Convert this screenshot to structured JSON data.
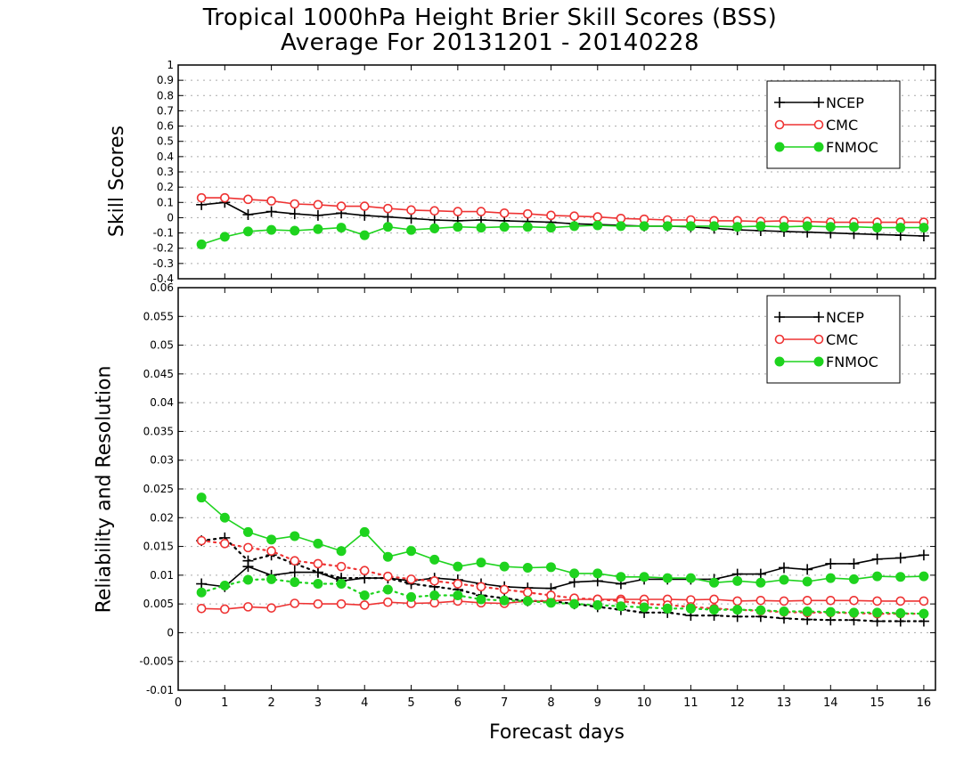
{
  "title_line1": "Tropical 1000hPa Height Brier Skill Scores (BSS)",
  "title_line2": "Average For 20131201 - 20140228",
  "xlabel": "Forecast days",
  "colors": {
    "NCEP": "#000000",
    "CMC": "#ee3333",
    "FNMOC": "#1ed31e",
    "grid": "#aaaaaa"
  },
  "chart_data": [
    {
      "type": "line",
      "ylabel": "Skill Scores",
      "xlim": [
        0,
        16.25
      ],
      "ylim": [
        -0.4,
        1
      ],
      "xticks": [
        0,
        1,
        2,
        3,
        4,
        5,
        6,
        7,
        8,
        9,
        10,
        11,
        12,
        13,
        14,
        15,
        16
      ],
      "yticks": [
        -0.4,
        -0.3,
        -0.2,
        -0.1,
        0,
        0.1,
        0.2,
        0.3,
        0.4,
        0.5,
        0.6,
        0.7,
        0.8,
        0.9,
        1
      ],
      "ytick_labels": [
        "-0.4",
        "-0.3",
        "-0.2",
        "-0.1",
        "0",
        "0.1",
        "0.2",
        "0.3",
        "0.4",
        "0.5",
        "0.6",
        "0.7",
        "0.8",
        "0.9",
        "1"
      ],
      "grid": true,
      "legend_position": "top-right",
      "legend": [
        "NCEP",
        "CMC",
        "FNMOC"
      ],
      "x": [
        0.5,
        1,
        1.5,
        2,
        2.5,
        3,
        3.5,
        4,
        4.5,
        5,
        5.5,
        6,
        6.5,
        7,
        7.5,
        8,
        8.5,
        9,
        9.5,
        10,
        10.5,
        11,
        11.5,
        12,
        12.5,
        13,
        13.5,
        14,
        14.5,
        15,
        15.5,
        16
      ],
      "series": [
        {
          "name": "NCEP",
          "marker": "plus",
          "line": "solid",
          "values": [
            0.085,
            0.1,
            0.02,
            0.04,
            0.025,
            0.015,
            0.03,
            0.015,
            0.005,
            -0.005,
            -0.015,
            -0.02,
            -0.015,
            -0.02,
            -0.025,
            -0.03,
            -0.04,
            -0.045,
            -0.05,
            -0.055,
            -0.055,
            -0.06,
            -0.07,
            -0.08,
            -0.085,
            -0.09,
            -0.095,
            -0.1,
            -0.105,
            -0.11,
            -0.115,
            -0.12
          ]
        },
        {
          "name": "CMC",
          "marker": "open-circle",
          "line": "solid",
          "values": [
            0.13,
            0.13,
            0.12,
            0.11,
            0.09,
            0.085,
            0.075,
            0.075,
            0.06,
            0.05,
            0.045,
            0.04,
            0.04,
            0.03,
            0.025,
            0.015,
            0.01,
            0.005,
            -0.005,
            -0.01,
            -0.015,
            -0.015,
            -0.02,
            -0.02,
            -0.025,
            -0.02,
            -0.025,
            -0.03,
            -0.03,
            -0.03,
            -0.03,
            -0.03
          ]
        },
        {
          "name": "FNMOC",
          "marker": "filled-circle",
          "line": "solid",
          "values": [
            -0.175,
            -0.125,
            -0.09,
            -0.08,
            -0.085,
            -0.075,
            -0.065,
            -0.115,
            -0.06,
            -0.08,
            -0.07,
            -0.06,
            -0.065,
            -0.06,
            -0.06,
            -0.065,
            -0.055,
            -0.05,
            -0.055,
            -0.055,
            -0.055,
            -0.055,
            -0.055,
            -0.06,
            -0.055,
            -0.06,
            -0.055,
            -0.06,
            -0.06,
            -0.065,
            -0.065,
            -0.065
          ]
        }
      ]
    },
    {
      "type": "line",
      "ylabel": "Reliability and Resolution",
      "xlabel": "Forecast days",
      "xlim": [
        0,
        16.25
      ],
      "ylim": [
        -0.01,
        0.06
      ],
      "xticks": [
        0,
        1,
        2,
        3,
        4,
        5,
        6,
        7,
        8,
        9,
        10,
        11,
        12,
        13,
        14,
        15,
        16
      ],
      "yticks": [
        -0.01,
        -0.005,
        0,
        0.005,
        0.01,
        0.015,
        0.02,
        0.025,
        0.03,
        0.035,
        0.04,
        0.045,
        0.05,
        0.055,
        0.06
      ],
      "ytick_labels": [
        "-0.01",
        "-0.005",
        "0",
        "0.005",
        "0.01",
        "0.015",
        "0.02",
        "0.025",
        "0.03",
        "0.035",
        "0.04",
        "0.045",
        "0.05",
        "0.055",
        "0.06"
      ],
      "grid": true,
      "legend_position": "top-right",
      "legend": [
        "NCEP",
        "CMC",
        "FNMOC"
      ],
      "x": [
        0.5,
        1,
        1.5,
        2,
        2.5,
        3,
        3.5,
        4,
        4.5,
        5,
        5.5,
        6,
        6.5,
        7,
        7.5,
        8,
        8.5,
        9,
        9.5,
        10,
        10.5,
        11,
        11.5,
        12,
        12.5,
        13,
        13.5,
        14,
        14.5,
        15,
        15.5,
        16
      ],
      "series": [
        {
          "name": "NCEP",
          "group": "Reliability",
          "marker": "plus",
          "line": "solid",
          "values": [
            0.0085,
            0.008,
            0.0115,
            0.01,
            0.0105,
            0.0105,
            0.009,
            0.0095,
            0.0095,
            0.009,
            0.0095,
            0.0092,
            0.0085,
            0.008,
            0.0078,
            0.0077,
            0.0088,
            0.009,
            0.0085,
            0.0093,
            0.0093,
            0.0093,
            0.0093,
            0.0102,
            0.0102,
            0.0113,
            0.011,
            0.012,
            0.012,
            0.0128,
            0.013,
            0.0135
          ]
        },
        {
          "name": "NCEP",
          "group": "Resolution",
          "marker": "plus",
          "line": "dotted",
          "values": [
            0.016,
            0.0165,
            0.0125,
            0.0135,
            0.012,
            0.0105,
            0.0095,
            0.0095,
            0.0095,
            0.0085,
            0.008,
            0.0075,
            0.0065,
            0.006,
            0.0055,
            0.0055,
            0.005,
            0.0045,
            0.004,
            0.0035,
            0.0035,
            0.003,
            0.003,
            0.0028,
            0.0028,
            0.0025,
            0.0023,
            0.0022,
            0.0022,
            0.002,
            0.002,
            0.002
          ]
        },
        {
          "name": "CMC",
          "group": "Reliability",
          "marker": "open-circle",
          "line": "solid",
          "values": [
            0.0042,
            0.0041,
            0.0045,
            0.0043,
            0.0051,
            0.005,
            0.005,
            0.0048,
            0.0053,
            0.0051,
            0.0052,
            0.0055,
            0.0052,
            0.0051,
            0.0055,
            0.0055,
            0.0058,
            0.0058,
            0.0058,
            0.0058,
            0.0058,
            0.0057,
            0.0058,
            0.0055,
            0.0056,
            0.0055,
            0.0056,
            0.0056,
            0.0056,
            0.0055,
            0.0055,
            0.0055
          ]
        },
        {
          "name": "CMC",
          "group": "Resolution",
          "marker": "open-circle",
          "line": "dotted",
          "values": [
            0.016,
            0.0155,
            0.0148,
            0.0142,
            0.0125,
            0.012,
            0.0115,
            0.0108,
            0.0098,
            0.0093,
            0.009,
            0.0085,
            0.008,
            0.0075,
            0.007,
            0.0065,
            0.006,
            0.0058,
            0.0055,
            0.005,
            0.0048,
            0.0045,
            0.0042,
            0.004,
            0.0038,
            0.0036,
            0.0035,
            0.0035,
            0.0034,
            0.0033,
            0.0033,
            0.0033
          ]
        },
        {
          "name": "FNMOC",
          "group": "Reliability",
          "marker": "filled-circle",
          "line": "solid",
          "values": [
            0.0235,
            0.02,
            0.0175,
            0.0162,
            0.0168,
            0.0155,
            0.0142,
            0.0175,
            0.0132,
            0.0142,
            0.0127,
            0.0115,
            0.0122,
            0.0115,
            0.0113,
            0.0114,
            0.0103,
            0.0103,
            0.0097,
            0.0097,
            0.0095,
            0.0095,
            0.0087,
            0.009,
            0.0087,
            0.0092,
            0.0089,
            0.0095,
            0.0093,
            0.0098,
            0.0097,
            0.0098
          ]
        },
        {
          "name": "FNMOC",
          "group": "Resolution",
          "marker": "filled-circle",
          "line": "dotted",
          "values": [
            0.007,
            0.0082,
            0.0092,
            0.0093,
            0.0088,
            0.0085,
            0.0085,
            0.0065,
            0.0075,
            0.0062,
            0.0065,
            0.0065,
            0.0058,
            0.0056,
            0.0055,
            0.0052,
            0.005,
            0.0048,
            0.0046,
            0.0044,
            0.0042,
            0.0042,
            0.004,
            0.004,
            0.0039,
            0.0037,
            0.0037,
            0.0036,
            0.0035,
            0.0035,
            0.0034,
            0.0033
          ]
        }
      ]
    }
  ]
}
